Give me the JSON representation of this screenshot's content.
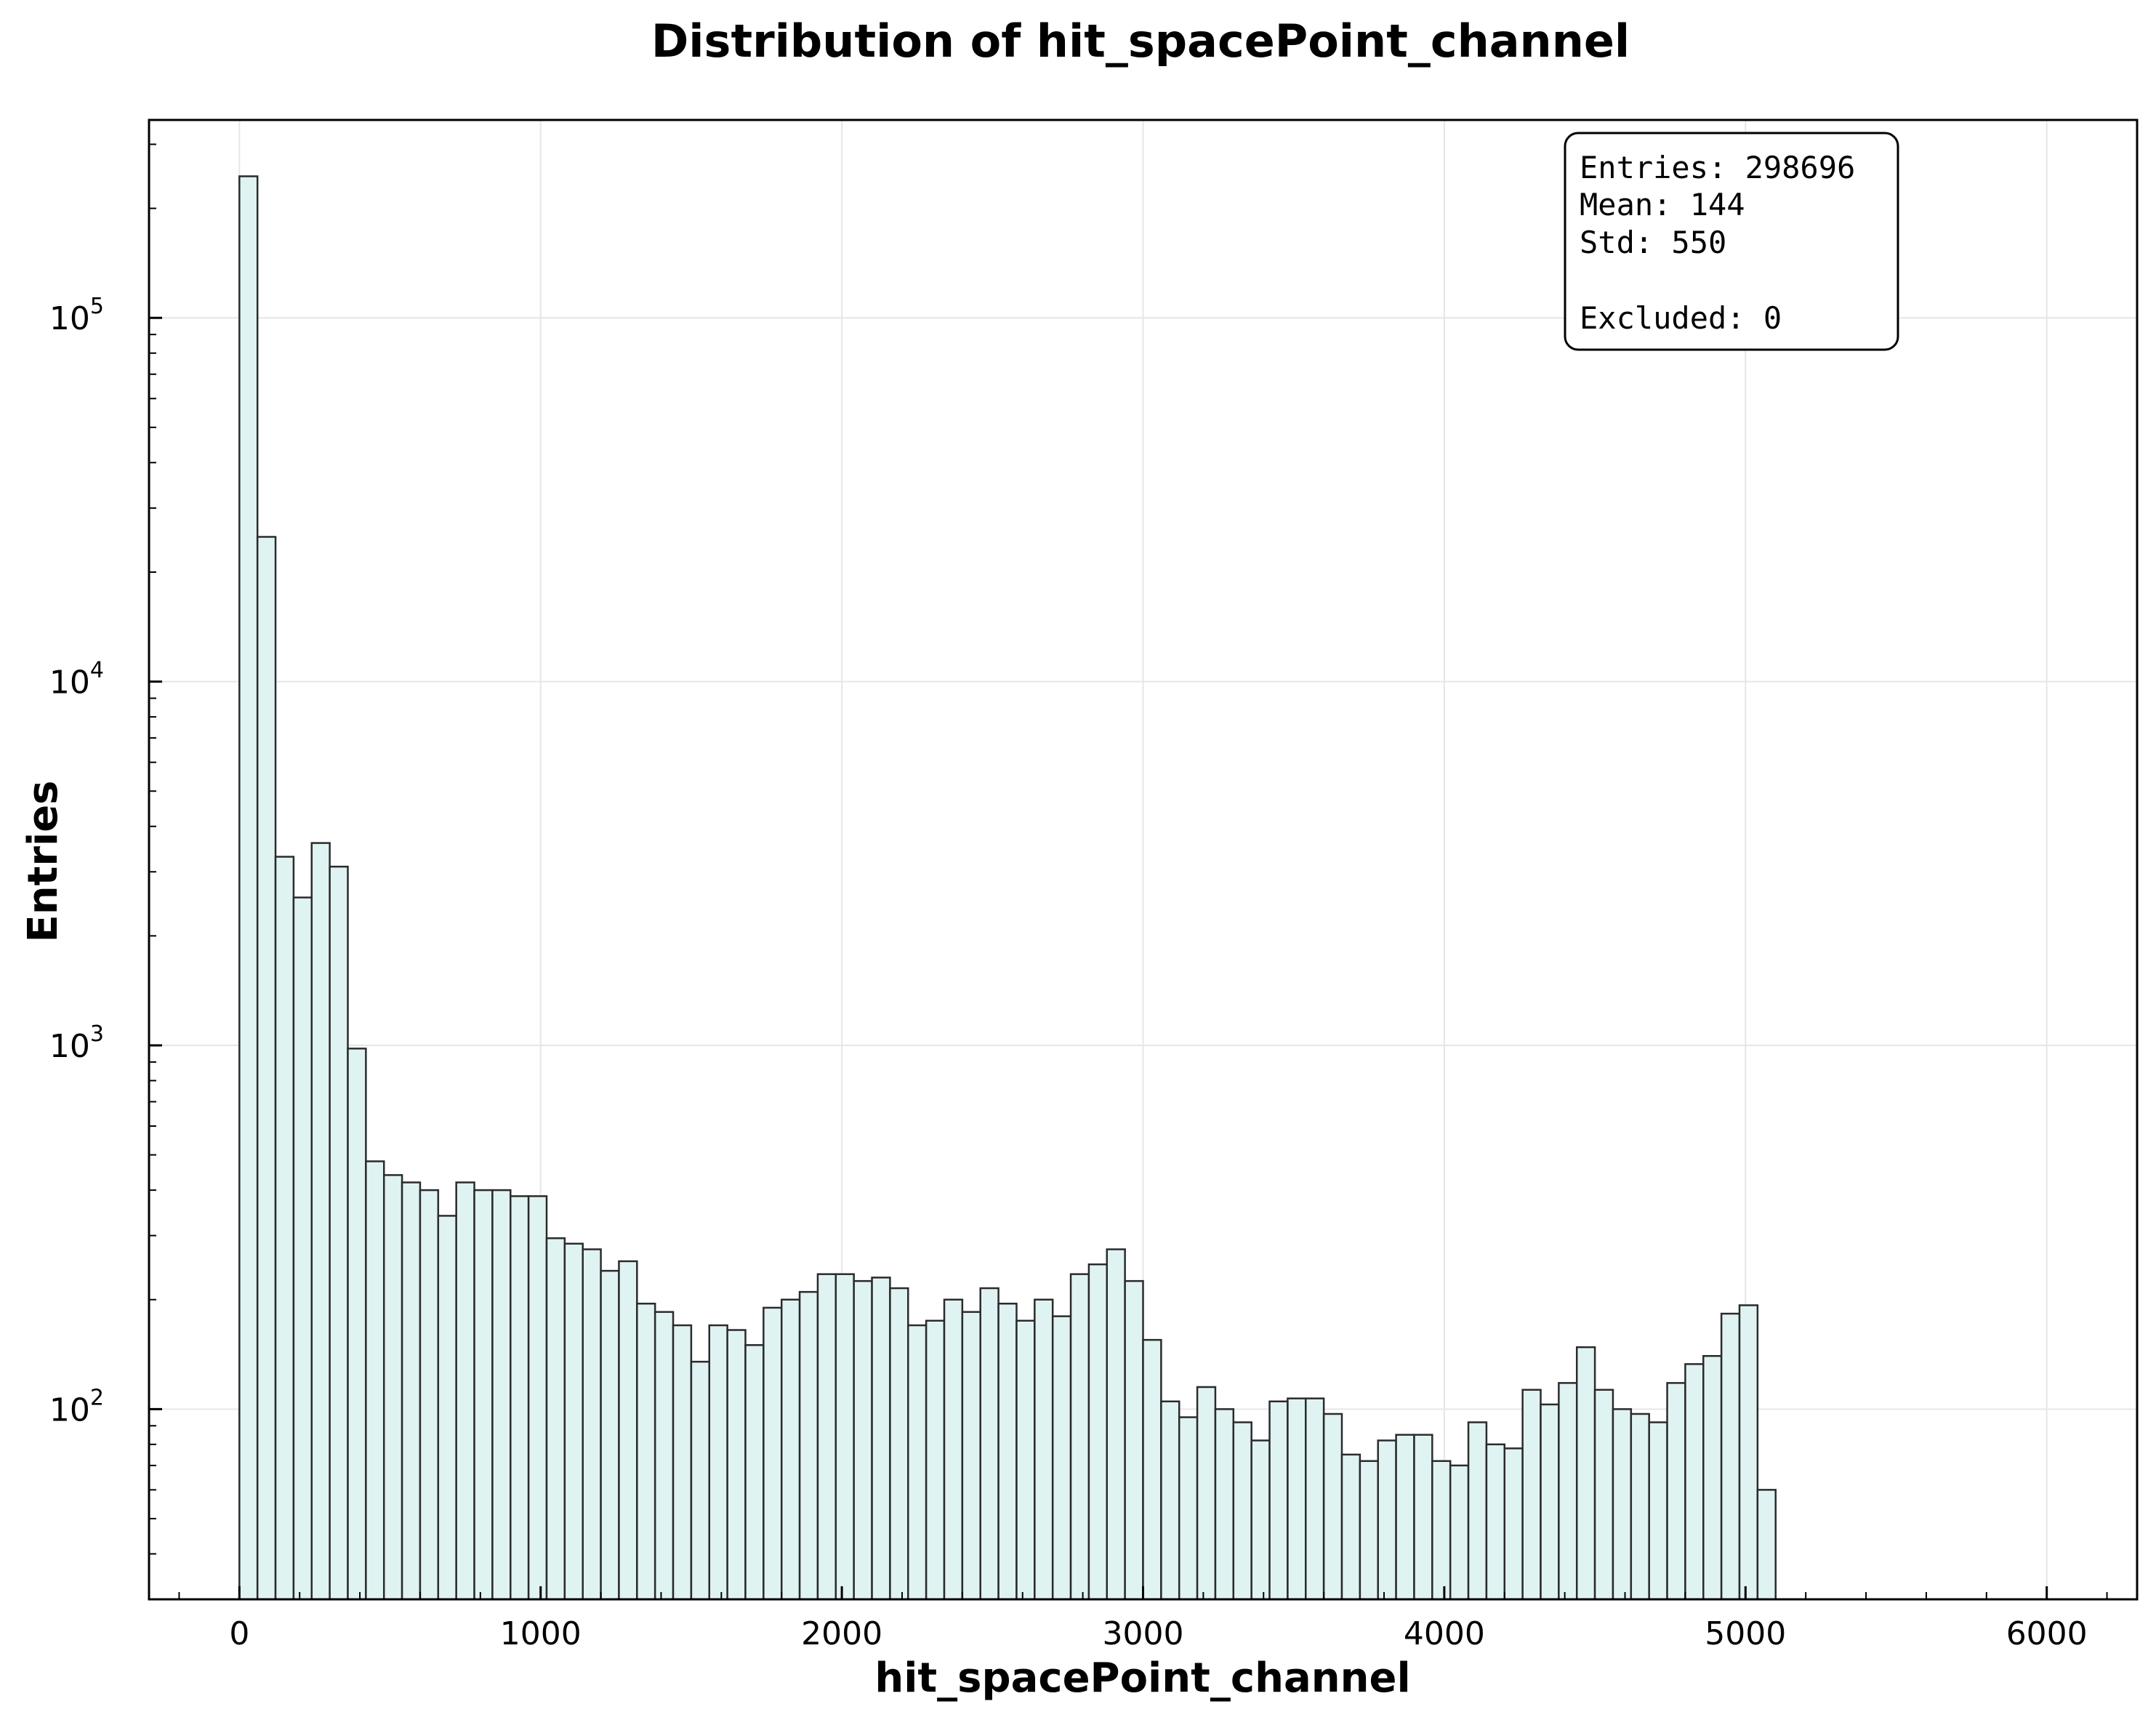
{
  "chart_data": {
    "type": "bar",
    "title": "Distribution of hit_spacePoint_channel",
    "xlabel": "hit_spacePoint_channel",
    "ylabel": "Entries",
    "xlim": [
      -300,
      6300
    ],
    "ylim": [
      30,
      350000
    ],
    "y_scale": "log",
    "grid": true,
    "bin_start": 0,
    "bin_width": 60,
    "x_ticks": [
      0,
      1000,
      2000,
      3000,
      4000,
      5000,
      6000
    ],
    "y_ticks": [
      {
        "base": "10",
        "exp": "2",
        "value": 100
      },
      {
        "base": "10",
        "exp": "3",
        "value": 1000
      },
      {
        "base": "10",
        "exp": "4",
        "value": 10000
      },
      {
        "base": "10",
        "exp": "5",
        "value": 100000
      }
    ],
    "values": [
      245000,
      25000,
      3300,
      2550,
      3600,
      3100,
      980,
      480,
      440,
      420,
      400,
      340,
      420,
      400,
      400,
      385,
      385,
      295,
      285,
      275,
      240,
      255,
      195,
      185,
      170,
      135,
      170,
      165,
      150,
      190,
      200,
      210,
      235,
      235,
      225,
      230,
      215,
      170,
      175,
      200,
      185,
      215,
      195,
      175,
      200,
      180,
      235,
      250,
      275,
      225,
      155,
      105,
      95,
      115,
      100,
      92,
      82,
      105,
      107,
      107,
      97,
      75,
      72,
      82,
      85,
      85,
      72,
      70,
      92,
      80,
      78,
      113,
      103,
      118,
      148,
      113,
      100,
      97,
      92,
      118,
      133,
      140,
      183,
      193,
      60
    ],
    "bar_fill": "#e0f3f3",
    "bar_edge": "#2b2b2b",
    "stats": {
      "entries": "Entries: 298696",
      "mean": "Mean: 144",
      "std": "Std: 550",
      "excluded": "Excluded: 0"
    },
    "stats_placement": "top-right"
  }
}
